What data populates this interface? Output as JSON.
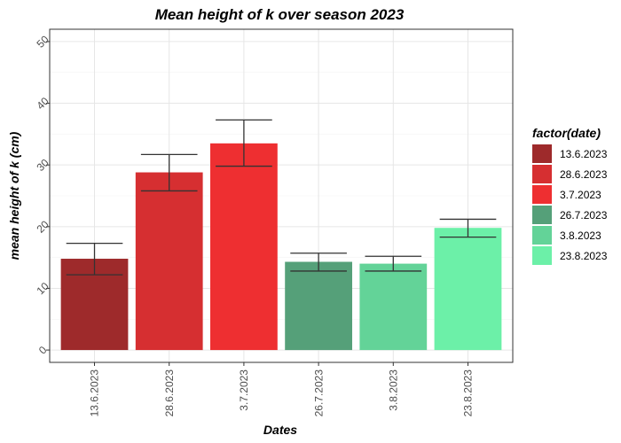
{
  "chart_data": {
    "type": "bar",
    "title": "Mean height of k over season 2023",
    "xlabel": "Dates",
    "ylabel": "mean height of k (cm)",
    "categories": [
      "13.6.2023",
      "28.6.2023",
      "3.7.2023",
      "26.7.2023",
      "3.8.2023",
      "23.8.2023"
    ],
    "values": [
      14.8,
      28.8,
      33.5,
      14.3,
      14.0,
      19.8
    ],
    "error_low": [
      12.2,
      25.8,
      29.8,
      12.8,
      12.8,
      18.3
    ],
    "error_high": [
      17.3,
      31.7,
      37.3,
      15.7,
      15.2,
      21.2
    ],
    "colors": [
      "#9e2a2b",
      "#d62f31",
      "#ee2f31",
      "#55a079",
      "#63d398",
      "#6cf0a8"
    ],
    "ylim": [
      -2,
      52
    ],
    "yticks": [
      0,
      10,
      20,
      30,
      40,
      50
    ],
    "grid": true,
    "legend": {
      "title": "factor(date)",
      "position": "right"
    }
  }
}
